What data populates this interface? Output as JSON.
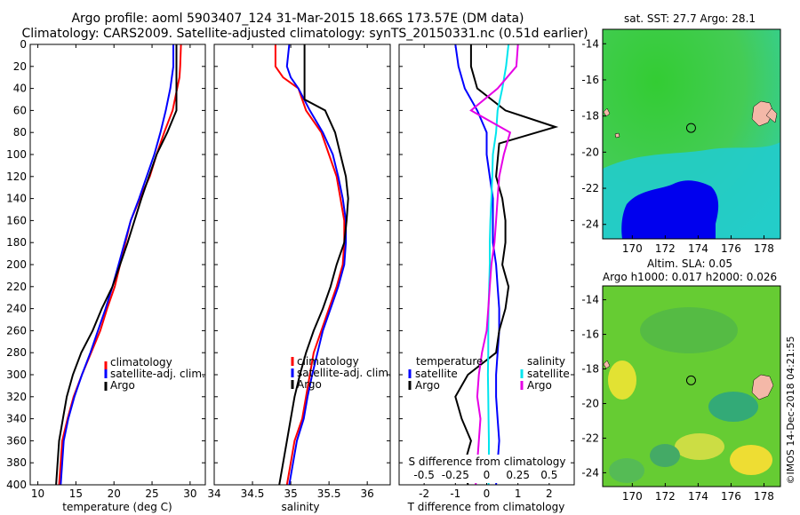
{
  "header": {
    "line1": "Argo profile: aoml 5903407_124 31-Mar-2015 18.66S 173.57E (DM data)",
    "line2": "Climatology: CARS2009. Satellite-adjusted climatology: synTS_20150331.nc (0.51d earlier)"
  },
  "watermark": "©IMOS 14-Dec-2018 04:21:55",
  "colors": {
    "climatology": "#ff0000",
    "satellite": "#0000ff",
    "argo": "#000000",
    "sat_salinity": "#00e5ee",
    "argo_salinity": "#e600e6"
  },
  "chart_data": [
    {
      "type": "line",
      "title": "",
      "xlabel": "temperature (deg C)",
      "ylabel": "",
      "xlim": [
        9,
        32
      ],
      "ylim": [
        400,
        0
      ],
      "xticks": [
        "10",
        "15",
        "20",
        "25",
        "30"
      ],
      "yticks": [
        "0",
        "20",
        "40",
        "60",
        "80",
        "100",
        "120",
        "140",
        "160",
        "180",
        "200",
        "220",
        "240",
        "260",
        "280",
        "300",
        "320",
        "340",
        "360",
        "380",
        "400"
      ],
      "legend": [
        "climatology",
        "satellite-adj. clim.",
        "Argo"
      ],
      "series": [
        {
          "name": "climatology",
          "color": "#ff0000",
          "x": [
            28.8,
            28.7,
            28.6,
            28.3,
            27.7,
            26.6,
            25.6,
            24.7,
            23.4,
            22.2,
            21.5,
            20.8,
            20.1,
            19.1,
            18.2,
            17.0,
            15.8,
            14.7,
            13.9,
            13.2,
            12.8
          ],
          "y": [
            0,
            20,
            30,
            40,
            60,
            80,
            100,
            120,
            140,
            160,
            180,
            200,
            220,
            240,
            260,
            280,
            300,
            320,
            340,
            360,
            400
          ]
        },
        {
          "name": "satellite-adj. clim.",
          "color": "#0000ff",
          "x": [
            27.8,
            27.8,
            27.6,
            27.4,
            26.8,
            26.1,
            25.3,
            24.3,
            23.3,
            22.2,
            21.4,
            20.6,
            19.8,
            18.9,
            17.9,
            16.9,
            15.8,
            14.8,
            14.0,
            13.4,
            13.0
          ],
          "y": [
            0,
            20,
            30,
            40,
            60,
            80,
            100,
            120,
            140,
            160,
            180,
            200,
            220,
            240,
            260,
            280,
            300,
            320,
            340,
            360,
            400
          ]
        },
        {
          "name": "Argo",
          "color": "#000000",
          "x": [
            28.2,
            28.2,
            28.2,
            28.2,
            28.2,
            27.0,
            25.6,
            24.6,
            23.6,
            22.7,
            21.8,
            20.8,
            19.8,
            18.4,
            17.2,
            15.7,
            14.6,
            13.8,
            13.3,
            12.8,
            12.4
          ],
          "y": [
            0,
            20,
            40,
            50,
            60,
            80,
            100,
            120,
            140,
            160,
            180,
            200,
            220,
            240,
            260,
            280,
            300,
            320,
            340,
            360,
            400
          ]
        }
      ]
    },
    {
      "type": "line",
      "title": "",
      "xlabel": "salinity",
      "ylabel": "",
      "xlim": [
        34,
        36.3
      ],
      "ylim": [
        400,
        0
      ],
      "xticks": [
        "34",
        "34.5",
        "35",
        "35.5",
        "36"
      ],
      "legend": [
        "climatology",
        "satellite-adj. clim.",
        "Argo"
      ],
      "series": [
        {
          "name": "climatology",
          "color": "#ff0000",
          "x": [
            34.8,
            34.8,
            34.9,
            35.1,
            35.2,
            35.4,
            35.5,
            35.6,
            35.65,
            35.7,
            35.7,
            35.68,
            35.6,
            35.5,
            35.4,
            35.3,
            35.25,
            35.2,
            35.15,
            35.05,
            34.95
          ],
          "y": [
            0,
            20,
            30,
            40,
            60,
            80,
            100,
            120,
            140,
            160,
            180,
            200,
            220,
            240,
            260,
            280,
            300,
            320,
            340,
            360,
            400
          ]
        },
        {
          "name": "satellite-adj. clim.",
          "color": "#0000ff",
          "x": [
            34.98,
            34.95,
            35.0,
            35.1,
            35.25,
            35.42,
            35.55,
            35.62,
            35.68,
            35.72,
            35.72,
            35.7,
            35.62,
            35.52,
            35.42,
            35.35,
            35.28,
            35.22,
            35.17,
            35.08,
            34.98
          ],
          "y": [
            0,
            20,
            30,
            40,
            60,
            80,
            100,
            120,
            140,
            160,
            180,
            200,
            220,
            240,
            260,
            280,
            300,
            320,
            340,
            360,
            400
          ]
        },
        {
          "name": "Argo",
          "color": "#000000",
          "x": [
            35.18,
            35.18,
            35.18,
            35.18,
            35.45,
            35.58,
            35.65,
            35.72,
            35.75,
            35.73,
            35.7,
            35.6,
            35.52,
            35.42,
            35.3,
            35.2,
            35.12,
            35.05,
            35.0,
            34.95,
            34.85
          ],
          "y": [
            0,
            20,
            40,
            50,
            60,
            80,
            100,
            120,
            140,
            160,
            180,
            200,
            220,
            240,
            260,
            280,
            300,
            320,
            340,
            360,
            400
          ]
        }
      ]
    },
    {
      "type": "line",
      "title": "",
      "xlabel": "T difference from climatology",
      "ylabel": "",
      "xlim": [
        -2.8,
        2.8
      ],
      "ylim": [
        400,
        0
      ],
      "xticks": [
        "-2",
        "-1",
        "0",
        "1",
        "2"
      ],
      "secondary_xlabel": "S difference from climatology",
      "secondary_xticks": [
        "-0.5",
        "-0.25",
        "0",
        "0.25",
        "0.5"
      ],
      "legend_temperature_title": "temperature",
      "legend_salinity_title": "salinity",
      "legend_temperature": [
        "satellite",
        "Argo"
      ],
      "legend_salinity": [
        "satellite",
        "Argo"
      ],
      "series": [
        {
          "name": "T satellite",
          "color": "#0000ff",
          "x": [
            -1.0,
            -0.9,
            -0.7,
            -0.3,
            0.0,
            0.0,
            0.1,
            0.2,
            0.2,
            0.2,
            0.3,
            0.35,
            0.4,
            0.4,
            0.35,
            0.3,
            0.3,
            0.35,
            0.4,
            0.35,
            0.3
          ],
          "y": [
            0,
            20,
            40,
            60,
            80,
            100,
            120,
            140,
            160,
            180,
            200,
            220,
            240,
            260,
            280,
            300,
            320,
            340,
            360,
            380,
            400
          ]
        },
        {
          "name": "T Argo",
          "color": "#000000",
          "x": [
            -0.5,
            -0.5,
            -0.3,
            0.6,
            2.2,
            0.4,
            0.3,
            0.5,
            0.6,
            0.6,
            0.5,
            0.7,
            0.6,
            0.4,
            0.3,
            -0.6,
            -1.0,
            -0.8,
            -0.5,
            -0.7,
            -0.6
          ],
          "y": [
            0,
            20,
            40,
            60,
            75,
            90,
            120,
            140,
            160,
            180,
            200,
            220,
            240,
            260,
            280,
            300,
            320,
            340,
            360,
            380,
            400
          ]
        },
        {
          "name": "S satellite",
          "color": "#00e5ee",
          "x": [
            0.7,
            0.62,
            0.5,
            0.35,
            0.3,
            0.2,
            0.18,
            0.15,
            0.12,
            0.1,
            0.1,
            0.08,
            0.06,
            0.05,
            0.05,
            0.04,
            0.05,
            0.06,
            0.07,
            0.07,
            0.06
          ],
          "y": [
            0,
            20,
            40,
            60,
            80,
            100,
            120,
            140,
            160,
            180,
            200,
            220,
            240,
            260,
            280,
            300,
            320,
            340,
            360,
            380,
            400
          ]
        },
        {
          "name": "S Argo",
          "color": "#e600e6",
          "x": [
            1.0,
            0.95,
            0.35,
            -0.5,
            0.75,
            0.55,
            0.4,
            0.35,
            0.3,
            0.25,
            0.15,
            0.1,
            0.05,
            0.0,
            -0.15,
            -0.25,
            -0.3,
            -0.2,
            -0.25,
            -0.3,
            -0.35
          ],
          "y": [
            0,
            20,
            40,
            60,
            80,
            100,
            120,
            140,
            160,
            180,
            200,
            220,
            240,
            260,
            280,
            300,
            320,
            340,
            360,
            380,
            400
          ]
        }
      ]
    },
    {
      "type": "heatmap",
      "title": "sat. SST: 27.7 Argo: 28.1",
      "xlim": [
        168.2,
        179
      ],
      "ylim": [
        -24.8,
        -13.2
      ],
      "xticks": [
        "170",
        "172",
        "174",
        "176",
        "178"
      ],
      "yticks": [
        "-14",
        "-16",
        "-18",
        "-20",
        "-22",
        "-24"
      ],
      "argo_marker": {
        "lon": 173.57,
        "lat": -18.66
      }
    },
    {
      "type": "heatmap",
      "title": "Altim. SLA: 0.05",
      "subtitle": "Argo h1000: 0.017 h2000: 0.026",
      "xlim": [
        168.2,
        179
      ],
      "ylim": [
        -24.8,
        -13.2
      ],
      "xticks": [
        "170",
        "172",
        "174",
        "176",
        "178"
      ],
      "yticks": [
        "-14",
        "-16",
        "-18",
        "-20",
        "-22",
        "-24"
      ],
      "argo_marker": {
        "lon": 173.57,
        "lat": -18.66
      }
    }
  ]
}
